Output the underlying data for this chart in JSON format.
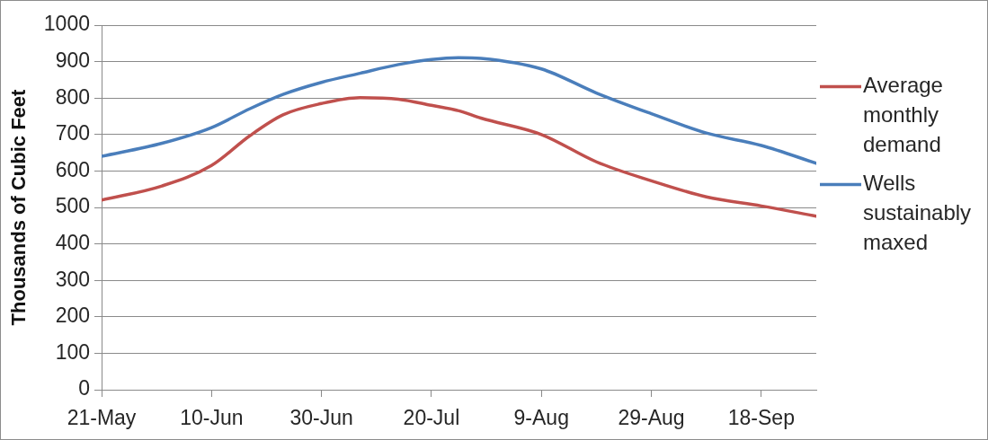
{
  "chart_data": {
    "type": "line",
    "ylabel": "Thousands of Cubic Feet",
    "x": [
      "--05-21",
      "--06-01",
      "--06-10",
      "--06-17",
      "--06-23",
      "--06-30",
      "--07-07",
      "--07-14",
      "--07-20",
      "--07-25",
      "--07-29",
      "--08-09",
      "--08-19",
      "--08-29",
      "--09-08",
      "--09-18",
      "--09-28"
    ],
    "series": [
      {
        "name": "Average monthly demand",
        "color": "#c0504d",
        "values": [
          520,
          559,
          615,
          697,
          754,
          785,
          801,
          797,
          780,
          765,
          745,
          700,
          625,
          573,
          529,
          504,
          476
        ]
      },
      {
        "name": "Wells sustainably maxed",
        "color": "#4a7ebb",
        "values": [
          640,
          676,
          719,
          771,
          810,
          843,
          868,
          892,
          906,
          911,
          909,
          880,
          814,
          757,
          704,
          670,
          621
        ]
      }
    ],
    "xlim": [
      "--05-21",
      "--09-28"
    ],
    "xticks": [
      {
        "value": "--05-21",
        "label": "21-May"
      },
      {
        "value": "--06-10",
        "label": "10-Jun"
      },
      {
        "value": "--06-30",
        "label": "30-Jun"
      },
      {
        "value": "--07-20",
        "label": "20-Jul"
      },
      {
        "value": "--08-09",
        "label": "9-Aug"
      },
      {
        "value": "--08-29",
        "label": "29-Aug"
      },
      {
        "value": "--09-18",
        "label": "18-Sep"
      }
    ],
    "ylim": [
      0,
      1000
    ],
    "yticks": [
      0,
      100,
      200,
      300,
      400,
      500,
      600,
      700,
      800,
      900,
      1000
    ],
    "grid": "y",
    "legend": "right"
  }
}
